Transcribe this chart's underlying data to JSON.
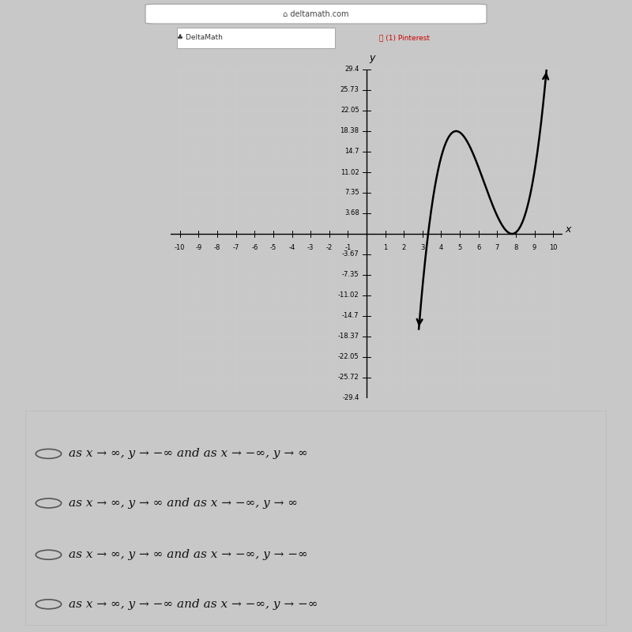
{
  "xlim": [
    -10.5,
    10.5
  ],
  "ylim": [
    -29.4,
    29.4
  ],
  "ytick_vals": [
    29.4,
    25.73,
    22.05,
    18.38,
    14.7,
    11.02,
    7.35,
    3.68,
    -3.67,
    -7.35,
    -11.02,
    -14.7,
    -18.37,
    -22.05,
    -25.72,
    -29.4
  ],
  "ytick_labels": [
    "29.4",
    "25.73",
    "22.05",
    "18.38",
    "14.7",
    "11.02",
    "7.35",
    "3.68",
    "-3.67",
    "-7.35",
    "-11.02",
    "-14.7",
    "-18.37",
    "-22.05",
    "-25.72",
    "-29.4"
  ],
  "xtick_vals": [
    -10,
    -9,
    -8,
    -7,
    -6,
    -5,
    -4,
    -3,
    -2,
    -1,
    1,
    2,
    3,
    4,
    5,
    6,
    7,
    8,
    9,
    10
  ],
  "curve_color": "#000000",
  "curve_linewidth": 1.8,
  "bg_color": "#d8d8d8",
  "plot_bg": "#f5f5f5",
  "grid_color": "#cccccc",
  "answer_options": [
    "as x → ∞, y → −∞ and as x → −∞, y → ∞",
    "as x → ∞, y → ∞ and as x → −∞, y → ∞",
    "as x → ∞, y → ∞ and as x → −∞, y → −∞",
    "as x → ∞, y → −∞ and as x → −∞, y → −∞"
  ],
  "local_max_x": 4.8,
  "local_max_y": 18.38,
  "local_min_x": 7.8,
  "local_min_y": 0.0
}
